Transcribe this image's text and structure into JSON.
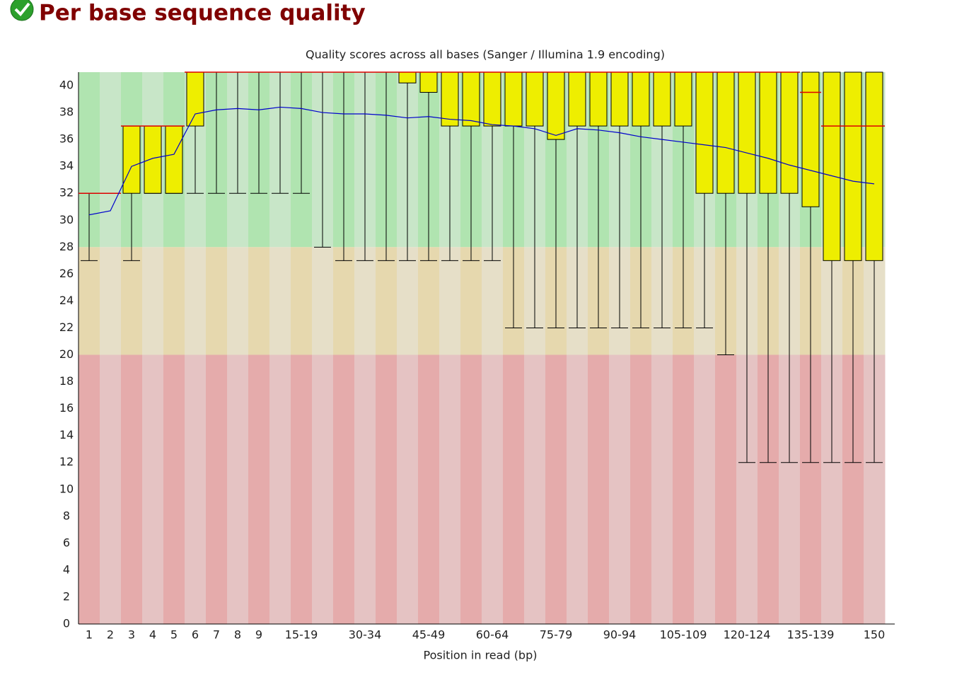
{
  "header": {
    "title": "Per base sequence quality"
  },
  "chart_data": {
    "type": "box",
    "title": "Quality scores across all bases (Sanger / Illumina 1.9 encoding)",
    "xlabel": "Position in read (bp)",
    "categories": [
      "1",
      "2",
      "3",
      "4",
      "5",
      "6",
      "7",
      "8",
      "9",
      null,
      "15-19",
      null,
      null,
      "30-34",
      null,
      null,
      "45-49",
      null,
      null,
      "60-64",
      null,
      null,
      "75-79",
      null,
      null,
      "90-94",
      null,
      null,
      "105-109",
      null,
      null,
      "120-124",
      null,
      null,
      "135-139",
      null,
      null,
      "150"
    ],
    "lower": [
      27,
      32,
      27,
      32,
      32,
      32,
      32,
      32,
      32,
      32,
      32,
      28,
      27,
      27,
      27,
      27,
      27,
      27,
      27,
      27,
      22,
      22,
      22,
      22,
      22,
      22,
      22,
      22,
      22,
      22,
      20,
      12,
      12,
      12,
      12,
      12,
      12,
      12
    ],
    "q1": [
      32,
      32,
      32,
      32,
      32,
      37,
      41,
      41,
      41,
      41,
      41,
      41,
      41,
      41,
      41,
      40.2,
      39.5,
      37,
      37,
      37,
      37,
      37,
      36,
      37,
      37,
      37,
      37,
      37,
      37,
      32,
      32,
      32,
      32,
      32,
      31,
      27,
      27,
      27
    ],
    "median": [
      32,
      32,
      37,
      37,
      37,
      41,
      41,
      41,
      41,
      41,
      41,
      41,
      41,
      41,
      41,
      41,
      41,
      41,
      41,
      41,
      41,
      41,
      41,
      41,
      41,
      41,
      41,
      41,
      41,
      41,
      41,
      41,
      41,
      41,
      39.5,
      37,
      37,
      37
    ],
    "q3": [
      32,
      32,
      37,
      37,
      37,
      41,
      41,
      41,
      41,
      41,
      41,
      41,
      41,
      41,
      41,
      41,
      41,
      41,
      41,
      41,
      41,
      41,
      41,
      41,
      41,
      41,
      41,
      41,
      41,
      41,
      41,
      41,
      41,
      41,
      41,
      41,
      41,
      41
    ],
    "upper": [
      32,
      32,
      37,
      37,
      37,
      41,
      41,
      41,
      41,
      41,
      41,
      41,
      41,
      41,
      41,
      41,
      41,
      41,
      41,
      41,
      41,
      41,
      41,
      41,
      41,
      41,
      41,
      41,
      41,
      41,
      41,
      41,
      41,
      41,
      41,
      41,
      41,
      41
    ],
    "mean": [
      30.4,
      30.7,
      34,
      34.6,
      34.9,
      37.9,
      38.2,
      38.3,
      38.2,
      38.4,
      38.3,
      38,
      37.9,
      37.9,
      37.8,
      37.6,
      37.7,
      37.5,
      37.4,
      37.1,
      37,
      36.8,
      36.3,
      36.8,
      36.7,
      36.5,
      36.2,
      36,
      35.8,
      35.6,
      35.4,
      35,
      34.6,
      34.1,
      33.7,
      33.3,
      32.9,
      32.7
    ],
    "box_color": "#eeee00",
    "median_color": "#dd0000",
    "mean_color": "#0000cc",
    "bands": [
      {
        "from": 28,
        "to": 41,
        "color": "#b0e4b0",
        "alt_color": "#c8e6c8"
      },
      {
        "from": 20,
        "to": 28,
        "color": "#e6d8ae",
        "alt_color": "#e6dfc8"
      },
      {
        "from": 0,
        "to": 20,
        "color": "#e5abab",
        "alt_color": "#e5c3c3"
      }
    ],
    "ylim": [
      0,
      41
    ],
    "yticks": [
      0,
      2,
      4,
      6,
      8,
      10,
      12,
      14,
      16,
      18,
      20,
      22,
      24,
      26,
      28,
      30,
      32,
      34,
      36,
      38,
      40
    ]
  }
}
